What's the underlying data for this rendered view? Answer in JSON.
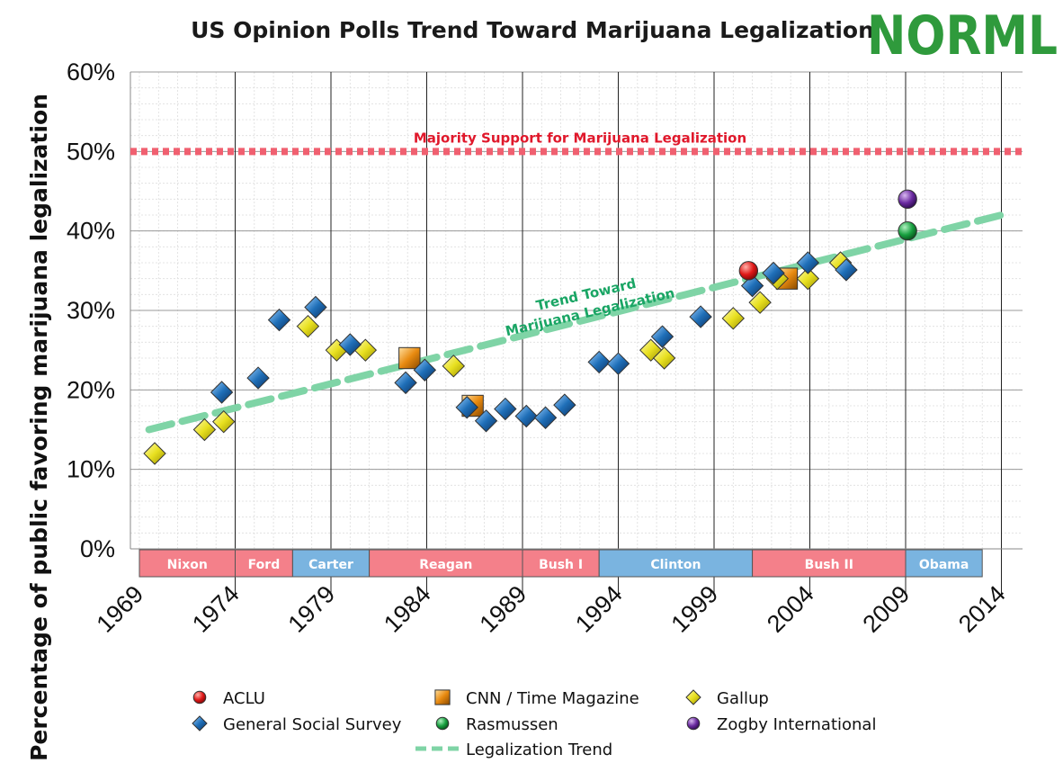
{
  "logo_text": "NORML",
  "colors": {
    "aclu": "#e01818",
    "cnn": "#e88a10",
    "gallup": "#e8e020",
    "gss": "#1f6fb8",
    "rasmussen": "#18a040",
    "zogby": "#6a2aa0",
    "trend": "#7fd4a6",
    "majority": "#f06070",
    "pres_red": "#f4808a",
    "pres_blue": "#7ab4e0"
  },
  "chart_data": {
    "type": "scatter",
    "title": "US Opinion Polls Trend Toward Marijuana Legalization",
    "xlabel": "",
    "ylabel": "Percentage of public favoring marijuana legalization",
    "xlim": [
      1969,
      2014
    ],
    "ylim": [
      0,
      60
    ],
    "x_ticks": [
      "1969",
      "1974",
      "1979",
      "1984",
      "1989",
      "1994",
      "1999",
      "2004",
      "2009",
      "2014"
    ],
    "y_ticks": [
      "0%",
      "10%",
      "20%",
      "30%",
      "40%",
      "50%",
      "60%"
    ],
    "grid": true,
    "legend_position": "bottom",
    "reference_line": {
      "y": 50,
      "label": "Majority Support for Marijuana Legalization"
    },
    "trend_annotation": [
      "Trend Toward",
      "Marijuana Legalization"
    ],
    "presidents": [
      {
        "name": "Nixon",
        "start": 1969,
        "end": 1974,
        "color": "red"
      },
      {
        "name": "Ford",
        "start": 1974,
        "end": 1977,
        "color": "red"
      },
      {
        "name": "Carter",
        "start": 1977,
        "end": 1981,
        "color": "blue"
      },
      {
        "name": "Reagan",
        "start": 1981,
        "end": 1989,
        "color": "red"
      },
      {
        "name": "Bush I",
        "start": 1989,
        "end": 1993,
        "color": "red"
      },
      {
        "name": "Clinton",
        "start": 1993,
        "end": 2001,
        "color": "blue"
      },
      {
        "name": "Bush II",
        "start": 2001,
        "end": 2009,
        "color": "red"
      },
      {
        "name": "Obama",
        "start": 2009,
        "end": 2013,
        "color": "blue"
      }
    ],
    "series": [
      {
        "name": "ACLU",
        "marker": "circle",
        "color_key": "aclu",
        "points": [
          [
            2000.8,
            35
          ]
        ]
      },
      {
        "name": "CNN / Time Magazine",
        "marker": "square",
        "color_key": "cnn",
        "points": [
          [
            1983.1,
            24
          ],
          [
            1986.4,
            18
          ],
          [
            2002.8,
            34
          ]
        ]
      },
      {
        "name": "Gallup",
        "marker": "diamond",
        "color_key": "gallup",
        "points": [
          [
            1969.8,
            12
          ],
          [
            1972.4,
            15
          ],
          [
            1973.4,
            16
          ],
          [
            1977.8,
            28
          ],
          [
            1979.3,
            25
          ],
          [
            1980.8,
            25
          ],
          [
            1985.4,
            23
          ],
          [
            1995.7,
            25
          ],
          [
            1996.4,
            24
          ],
          [
            2000.0,
            29
          ],
          [
            2001.4,
            31
          ],
          [
            2002.3,
            34
          ],
          [
            2003.9,
            34
          ],
          [
            2005.6,
            36
          ]
        ]
      },
      {
        "name": "General Social Survey",
        "marker": "diamond",
        "color_key": "gss",
        "points": [
          [
            1973.3,
            19.7
          ],
          [
            1975.2,
            21.5
          ],
          [
            1976.3,
            28.8
          ],
          [
            1978.2,
            30.4
          ],
          [
            1980.0,
            25.7
          ],
          [
            1982.9,
            20.9
          ],
          [
            1983.9,
            22.5
          ],
          [
            1986.1,
            17.8
          ],
          [
            1987.1,
            16.1
          ],
          [
            1988.1,
            17.6
          ],
          [
            1989.2,
            16.7
          ],
          [
            1990.2,
            16.5
          ],
          [
            1991.2,
            18.1
          ],
          [
            1993.0,
            23.5
          ],
          [
            1994.0,
            23.3
          ],
          [
            1996.3,
            26.7
          ],
          [
            1998.3,
            29.2
          ],
          [
            2001.0,
            33.1
          ],
          [
            2002.1,
            34.7
          ],
          [
            2003.9,
            36.0
          ],
          [
            2005.9,
            35.1
          ]
        ]
      },
      {
        "name": "Rasmussen",
        "marker": "circle",
        "color_key": "rasmussen",
        "points": [
          [
            2009.1,
            40
          ]
        ]
      },
      {
        "name": "Zogby International",
        "marker": "circle",
        "color_key": "zogby",
        "points": [
          [
            2009.1,
            44
          ]
        ]
      },
      {
        "name": "Legalization Trend",
        "marker": "dashed-line",
        "color_key": "trend",
        "points": [
          [
            1969.5,
            15
          ],
          [
            2014,
            42
          ]
        ]
      }
    ]
  }
}
